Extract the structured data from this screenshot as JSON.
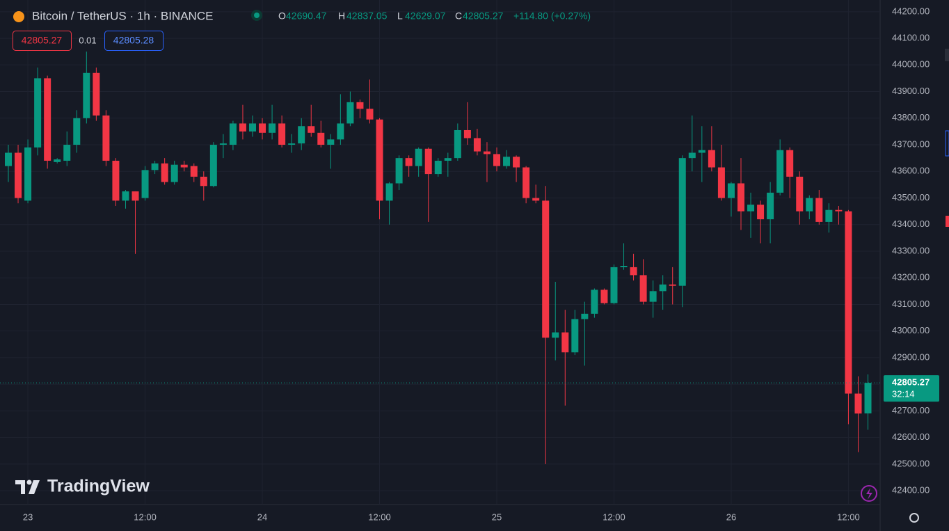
{
  "header": {
    "symbol": "Bitcoin / TetherUS · 1h · BINANCE",
    "o_label": "O",
    "open": "42690.47",
    "h_label": "H",
    "high": "42837.05",
    "l_label": "L",
    "low": "42629.07",
    "c_label": "C",
    "close": "42805.27",
    "change": "+114.80 (+0.27%)"
  },
  "trade": {
    "sell": "42805.27",
    "spread": "0.01",
    "buy": "42805.28"
  },
  "watermark": "TradingView",
  "chart_data": {
    "type": "candlestick",
    "categories": [
      null,
      null,
      "23",
      null,
      null,
      null,
      null,
      null,
      null,
      null,
      null,
      null,
      null,
      null,
      "12:00",
      null,
      null,
      null,
      null,
      null,
      null,
      null,
      null,
      null,
      null,
      null,
      "24",
      null,
      null,
      null,
      null,
      null,
      null,
      null,
      null,
      null,
      null,
      null,
      "12:00",
      null,
      null,
      null,
      null,
      null,
      null,
      null,
      null,
      null,
      null,
      null,
      "25",
      null,
      null,
      null,
      null,
      null,
      null,
      null,
      null,
      null,
      null,
      null,
      "12:00",
      null,
      null,
      null,
      null,
      null,
      null,
      null,
      null,
      null,
      null,
      null,
      "26",
      null,
      null,
      null,
      null,
      null,
      null,
      null,
      null,
      null,
      null,
      null,
      "12:00",
      null,
      null
    ],
    "open": [
      43620,
      43670,
      43490,
      43690,
      43950,
      43635,
      43640,
      43700,
      43800,
      43970,
      43810,
      43640,
      43490,
      43525,
      43500,
      43605,
      43630,
      43560,
      43625,
      43620,
      43580,
      43545,
      43700,
      43700,
      43780,
      43750,
      43780,
      43745,
      43780,
      43700,
      43705,
      43770,
      43745,
      43700,
      43720,
      43780,
      43860,
      43835,
      43795,
      43490,
      43555,
      43650,
      43620,
      43685,
      43590,
      43640,
      43650,
      43755,
      43725,
      43675,
      43665,
      43620,
      43655,
      43615,
      43500,
      43490,
      42975,
      42995,
      42920,
      43045,
      43065,
      43155,
      43105,
      43240,
      43240,
      43210,
      43110,
      43150,
      43175,
      43170,
      43650,
      43670,
      43680,
      43615,
      43500,
      43555,
      43450,
      43475,
      43420,
      43520,
      43680,
      43580,
      43450,
      43500,
      43410,
      43455,
      43450,
      42765,
      42690.47
    ],
    "high": [
      43700,
      43700,
      43720,
      43990,
      43960,
      43650,
      43750,
      43830,
      44050,
      43990,
      43830,
      43650,
      43530,
      43525,
      43620,
      43640,
      43650,
      43640,
      43640,
      43630,
      43600,
      43710,
      43740,
      43790,
      43850,
      43810,
      43800,
      43850,
      43810,
      43740,
      43800,
      43850,
      43790,
      43740,
      43890,
      43900,
      43870,
      43945,
      43800,
      43560,
      43660,
      43660,
      43690,
      43690,
      43650,
      43670,
      43780,
      43860,
      43760,
      43710,
      43690,
      43680,
      43660,
      43620,
      43550,
      43545,
      43185,
      43080,
      43080,
      43110,
      43160,
      43160,
      43250,
      43330,
      43290,
      43270,
      43190,
      43210,
      43240,
      43660,
      43810,
      43770,
      43770,
      43700,
      43560,
      43650,
      43520,
      43490,
      43560,
      43720,
      43690,
      43600,
      43510,
      43530,
      43480,
      43470,
      43455,
      42830,
      42837.05
    ],
    "low": [
      43560,
      43480,
      43480,
      43660,
      43610,
      43630,
      43620,
      43670,
      43780,
      43790,
      43620,
      43470,
      43460,
      43290,
      43490,
      43590,
      43550,
      43550,
      43600,
      43560,
      43490,
      43540,
      43650,
      43680,
      43720,
      43730,
      43720,
      43720,
      43690,
      43670,
      43680,
      43730,
      43690,
      43610,
      43700,
      43770,
      43800,
      43780,
      43420,
      43400,
      43530,
      43580,
      43580,
      43410,
      43580,
      43580,
      43640,
      43700,
      43660,
      43560,
      43600,
      43610,
      43560,
      43480,
      43480,
      42500,
      42890,
      42720,
      42910,
      42870,
      43050,
      43100,
      43100,
      43230,
      43190,
      43100,
      43050,
      43080,
      43100,
      43090,
      43600,
      43560,
      43600,
      43490,
      43430,
      43380,
      43350,
      43330,
      43330,
      43510,
      43500,
      43400,
      43420,
      43400,
      43370,
      43400,
      42650,
      42545,
      42629.07
    ],
    "close": [
      43670,
      43500,
      43690,
      43950,
      43640,
      43645,
      43700,
      43800,
      43970,
      43810,
      43640,
      43490,
      43525,
      43490,
      43605,
      43630,
      43560,
      43625,
      43615,
      43580,
      43545,
      43700,
      43705,
      43780,
      43750,
      43780,
      43745,
      43780,
      43700,
      43705,
      43770,
      43745,
      43700,
      43720,
      43780,
      43860,
      43835,
      43795,
      43490,
      43555,
      43650,
      43620,
      43685,
      43590,
      43640,
      43650,
      43755,
      43725,
      43675,
      43665,
      43620,
      43655,
      43615,
      43500,
      43490,
      42975,
      42995,
      42920,
      43045,
      43065,
      43155,
      43105,
      43240,
      43245,
      43210,
      43110,
      43150,
      43175,
      43170,
      43650,
      43670,
      43680,
      43615,
      43500,
      43555,
      43450,
      43475,
      43420,
      43520,
      43680,
      43580,
      43450,
      43500,
      43410,
      43455,
      43450,
      42765,
      42690,
      42805.27
    ],
    "up_color": "#089981",
    "down_color": "#f23645",
    "ylim": [
      42348,
      44244
    ],
    "yticks": [
      {
        "value": 42400,
        "label": "42400.00"
      },
      {
        "value": 42500,
        "label": "42500.00"
      },
      {
        "value": 42600,
        "label": "42600.00"
      },
      {
        "value": 42700,
        "label": "42700.00"
      },
      {
        "value": 42800,
        "label": "42800.00"
      },
      {
        "value": 42900,
        "label": "42900.00"
      },
      {
        "value": 43000,
        "label": "43000.00"
      },
      {
        "value": 43100,
        "label": "43100.00"
      },
      {
        "value": 43200,
        "label": "43200.00"
      },
      {
        "value": 43300,
        "label": "43300.00"
      },
      {
        "value": 43400,
        "label": "43400.00"
      },
      {
        "value": 43500,
        "label": "43500.00"
      },
      {
        "value": 43600,
        "label": "43600.00"
      },
      {
        "value": 43700,
        "label": "43700.00"
      },
      {
        "value": 43800,
        "label": "43800.00"
      },
      {
        "value": 43900,
        "label": "43900.00"
      },
      {
        "value": 44000,
        "label": "44000.00"
      },
      {
        "value": 44100,
        "label": "44100.00"
      },
      {
        "value": 44200,
        "label": "44200.00"
      }
    ],
    "grid": true,
    "last_price": 42805.27,
    "countdown": "32:14"
  }
}
